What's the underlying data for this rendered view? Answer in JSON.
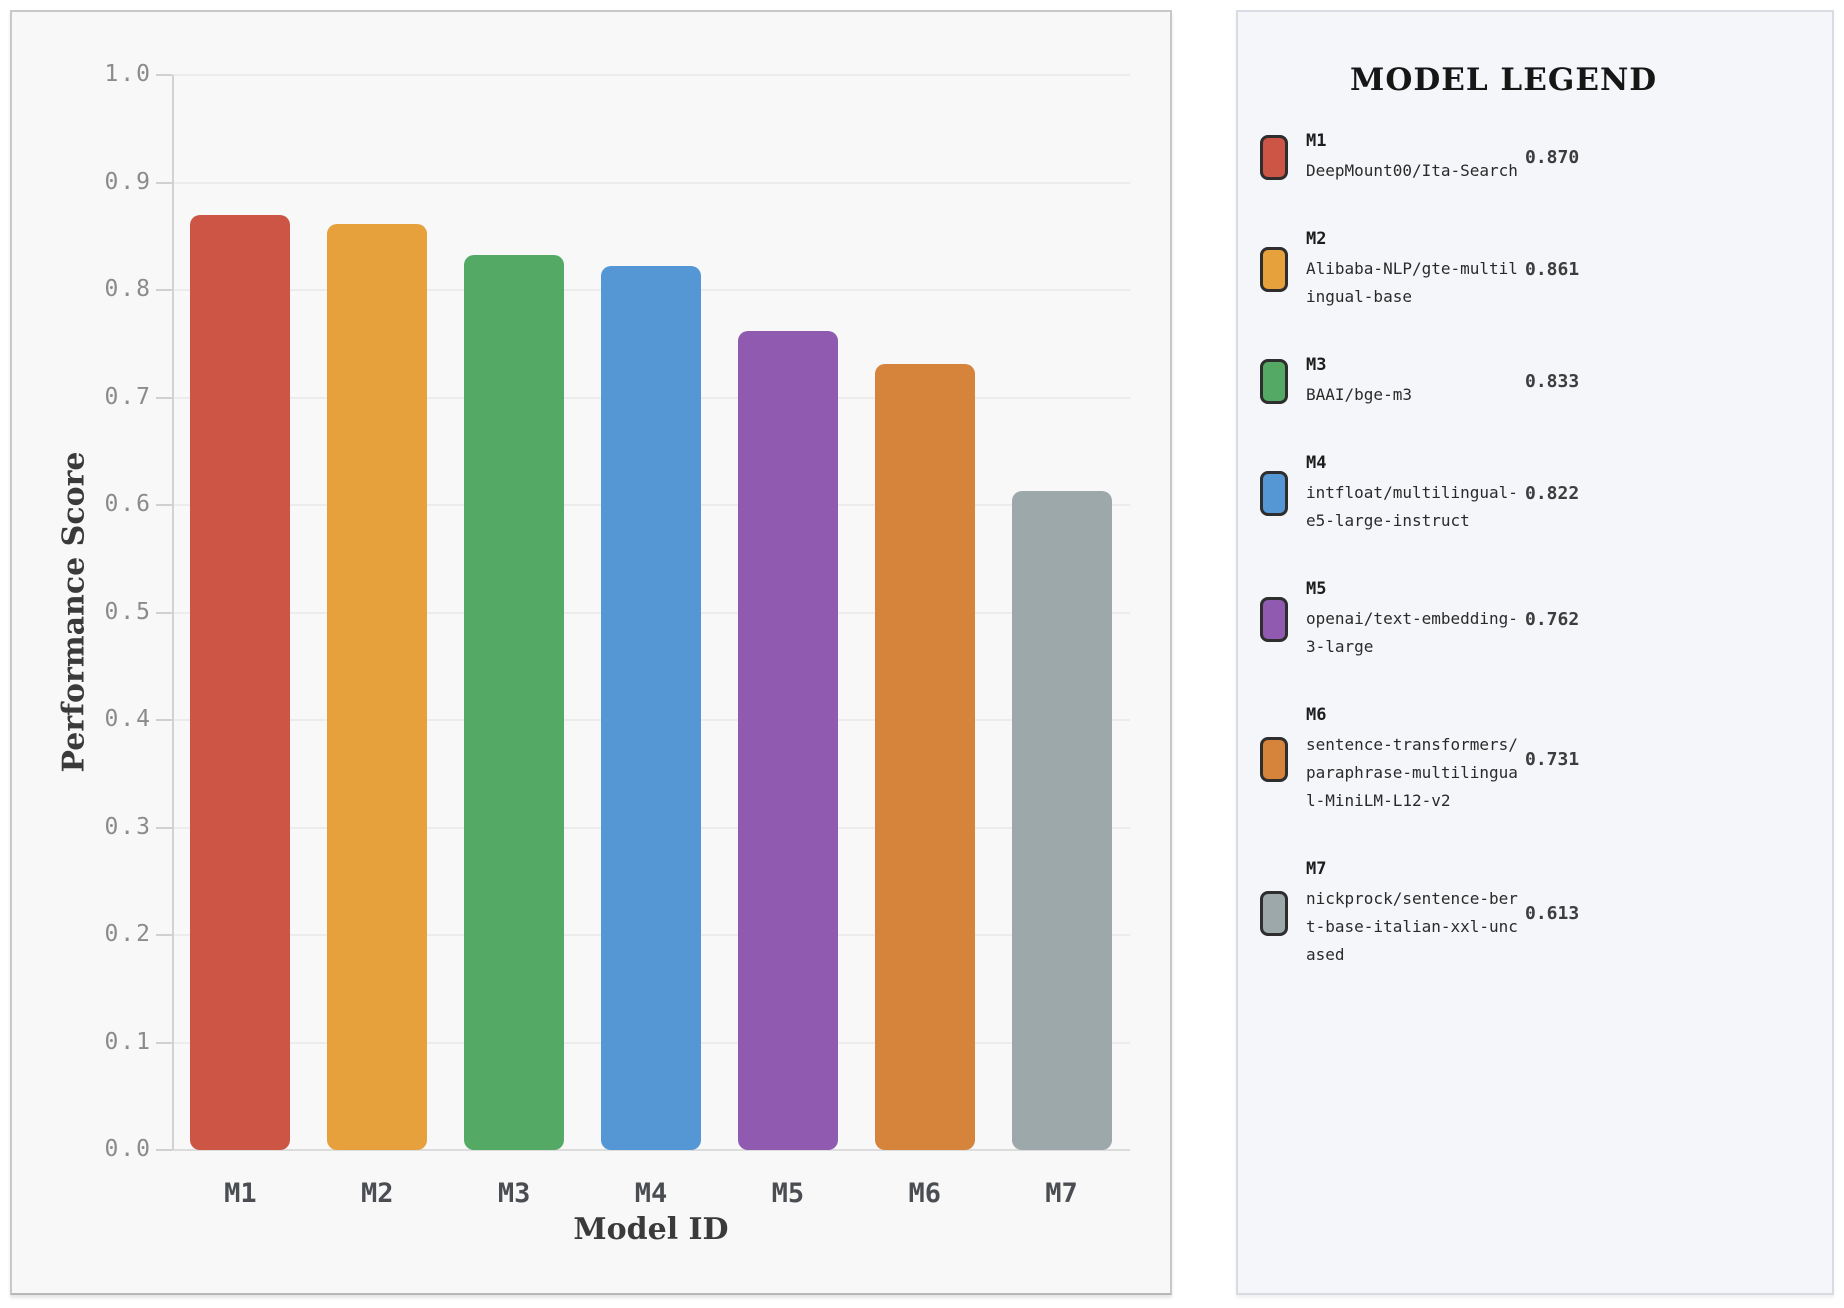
{
  "chart_data": {
    "type": "bar",
    "categories": [
      "M1",
      "M2",
      "M3",
      "M4",
      "M5",
      "M6",
      "M7"
    ],
    "values": [
      0.87,
      0.861,
      0.833,
      0.822,
      0.762,
      0.731,
      0.613
    ],
    "bar_colors": [
      "#cd5545",
      "#e6a03c",
      "#54aa64",
      "#5497d4",
      "#905ab0",
      "#d6833c",
      "#9da8aa"
    ],
    "title": "",
    "xlabel": "Model ID",
    "ylabel": "Performance Score",
    "ylim": [
      0.0,
      1.0
    ],
    "ytick_labels": [
      "0.0",
      "0.1",
      "0.2",
      "0.3",
      "0.4",
      "0.5",
      "0.6",
      "0.7",
      "0.8",
      "0.9",
      "1.0"
    ],
    "grid": true,
    "legend_position": "separate-right-panel"
  },
  "legend": {
    "title": "MODEL LEGEND",
    "items": [
      {
        "id": "M1",
        "name": "DeepMount00/Ita-Search",
        "score": "0.870",
        "color": "#cd5545"
      },
      {
        "id": "M2",
        "name": "Alibaba-NLP/gte-multilingual-base",
        "score": "0.861",
        "color": "#e6a03c"
      },
      {
        "id": "M3",
        "name": "BAAI/bge-m3",
        "score": "0.833",
        "color": "#54aa64"
      },
      {
        "id": "M4",
        "name": "intfloat/multilingual-e5-large-instruct",
        "score": "0.822",
        "color": "#5497d4"
      },
      {
        "id": "M5",
        "name": "openai/text-embedding-3-large",
        "score": "0.762",
        "color": "#905ab0"
      },
      {
        "id": "M6",
        "name": "sentence-transformers/paraphrase-multilingual-MiniLM-L12-v2",
        "score": "0.731",
        "color": "#d6833c"
      },
      {
        "id": "M7",
        "name": "nickprock/sentence-bert-base-italian-xxl-uncased",
        "score": "0.613",
        "color": "#9da8aa"
      }
    ]
  },
  "colors": {
    "chart_panel_bg": "#f8f8f8",
    "legend_panel_bg": "#f4f6f9",
    "gridline": "#ececec",
    "axis_line": "#d2d2d2",
    "tick_label": "#8b8b8b",
    "xtick_label": "#4a4d52"
  }
}
